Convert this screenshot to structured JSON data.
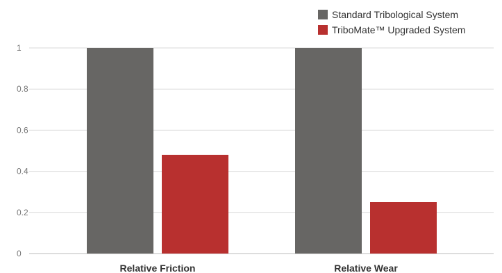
{
  "chart_data": {
    "type": "bar",
    "categories": [
      "Relative Friction",
      "Relative Wear"
    ],
    "series": [
      {
        "name": "Standard Tribological System",
        "values": [
          1,
          1
        ],
        "color": "#676664"
      },
      {
        "name": "TriboMate™ Upgraded System",
        "values": [
          0.48,
          0.25
        ],
        "color": "#b8302f"
      }
    ],
    "y_ticks": [
      "0",
      "0.2",
      "0.4",
      "0.6",
      "0.8",
      "1"
    ],
    "ylim": [
      0,
      1
    ],
    "grid": true,
    "legend_position": "top-right"
  }
}
